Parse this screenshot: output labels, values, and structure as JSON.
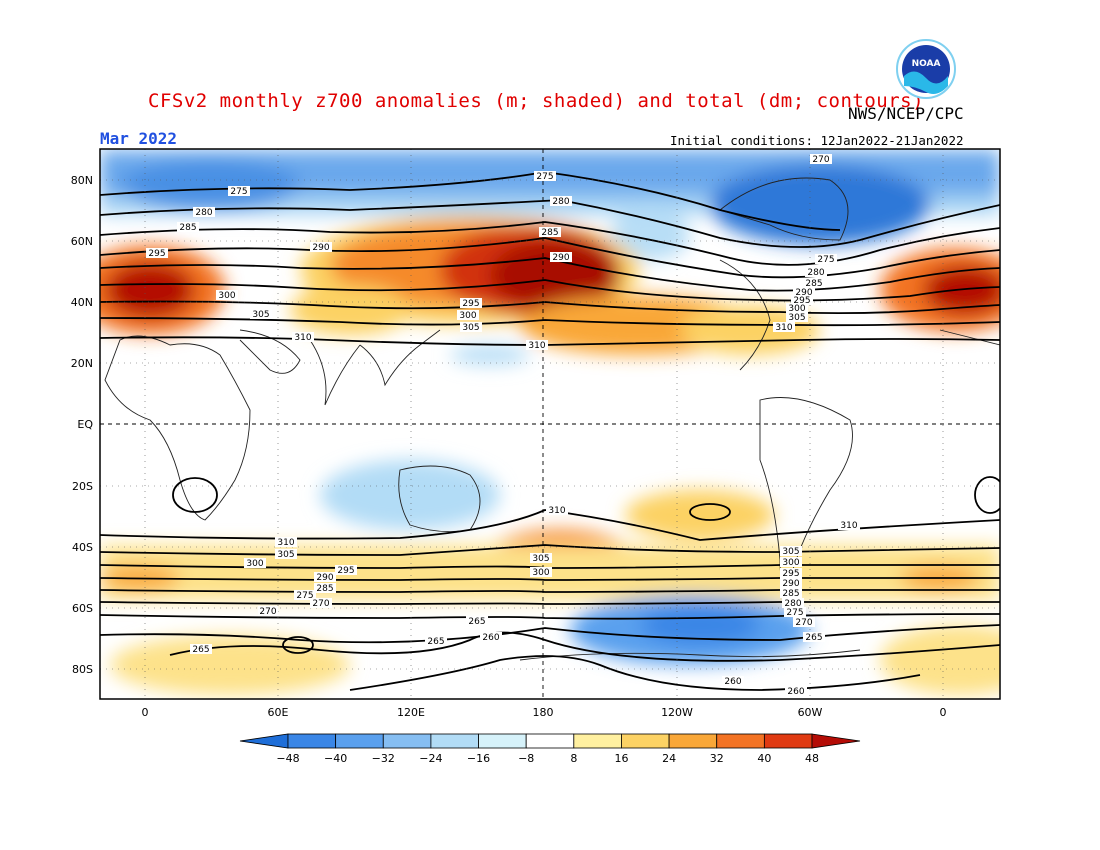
{
  "header": {
    "title": "CFSv2 monthly z700 anomalies (m; shaded) and total (dm; contours)",
    "month": "Mar 2022",
    "org": "NWS/NCEP/CPC",
    "initial_conditions": "Initial conditions: 12Jan2022-21Jan2022",
    "logo_text": "NOAA"
  },
  "axes": {
    "lat_labels": [
      "80N",
      "60N",
      "40N",
      "20N",
      "EQ",
      "20S",
      "40S",
      "60S",
      "80S"
    ],
    "lon_labels": [
      "0",
      "60E",
      "120E",
      "180",
      "120W",
      "60W",
      "0"
    ]
  },
  "colorbar": {
    "ticks": [
      "-48",
      "-40",
      "-32",
      "-24",
      "-16",
      "-8",
      "8",
      "16",
      "24",
      "32",
      "40",
      "48"
    ],
    "colors": [
      "#1e6ed8",
      "#3a86e6",
      "#5aa0ee",
      "#86bef2",
      "#b2dcf6",
      "#d6f2fa",
      "#ffffff",
      "#fff0a0",
      "#fcd264",
      "#f9a738",
      "#f37324",
      "#e03a12",
      "#b40c06"
    ]
  },
  "contour_labels": {
    "nh": [
      "275",
      "280",
      "285",
      "290",
      "295",
      "300",
      "305",
      "310"
    ],
    "sh": [
      "310",
      "305",
      "300",
      "295",
      "290",
      "285",
      "280",
      "275",
      "270",
      "265",
      "260"
    ]
  }
}
